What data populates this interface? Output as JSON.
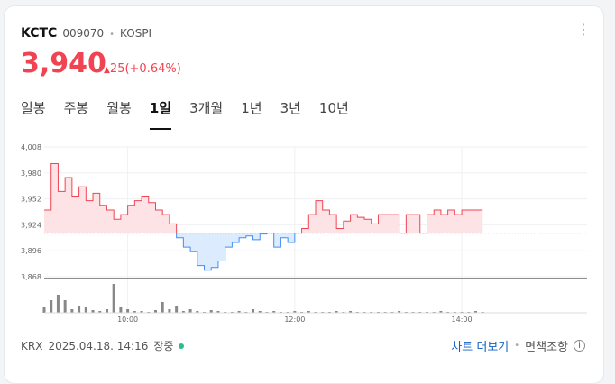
{
  "stock": {
    "name": "KCTC",
    "code": "009070",
    "market": "KOSPI",
    "price": "3,940",
    "change": "25(+0.64%)",
    "change_arrow": "▲"
  },
  "tabs": [
    "일봉",
    "주봉",
    "월봉",
    "1일",
    "3개월",
    "1년",
    "3년",
    "10년"
  ],
  "active_tab": "1일",
  "footer": {
    "exchange": "KRX",
    "datetime": "2025.04.18. 14:16",
    "status": "장중"
  },
  "links": {
    "chart_more": "차트 더보기",
    "disclaimer": "면책조항"
  },
  "colors": {
    "up": "#f04452",
    "down": "#3e8ef7"
  },
  "chart_data": {
    "type": "line",
    "y_ticks": [
      "4,008",
      "3,980",
      "3,952",
      "3,924",
      "3,896",
      "3,868"
    ],
    "ylim": [
      3868,
      4008
    ],
    "x_ticks": [
      "10:00",
      "12:00",
      "14:00"
    ],
    "x_range": [
      "09:00",
      "15:30"
    ],
    "base_price": 3915,
    "series": [
      {
        "x": [
          "09:00",
          "09:05",
          "09:10",
          "09:15",
          "09:20",
          "09:25",
          "09:30",
          "09:35",
          "09:40",
          "09:45",
          "09:50",
          "09:55",
          "10:00",
          "10:05",
          "10:10",
          "10:15",
          "10:20",
          "10:25",
          "10:30",
          "10:35",
          "10:40",
          "10:45",
          "10:50",
          "10:55",
          "11:00",
          "11:05",
          "11:10",
          "11:15",
          "11:20",
          "11:25",
          "11:30",
          "11:35",
          "11:40",
          "11:45",
          "11:50",
          "11:55",
          "12:00",
          "12:05",
          "12:10",
          "12:15",
          "12:20",
          "12:25",
          "12:30",
          "12:35",
          "12:40",
          "12:45",
          "12:50",
          "12:55",
          "13:00",
          "13:05",
          "13:10",
          "13:15",
          "13:20",
          "13:25",
          "13:30",
          "13:35",
          "13:40",
          "13:45",
          "13:50",
          "13:55",
          "14:00",
          "14:05",
          "14:10",
          "14:15"
        ],
        "y": [
          3940,
          3990,
          3960,
          3975,
          3955,
          3965,
          3950,
          3958,
          3945,
          3940,
          3930,
          3935,
          3945,
          3950,
          3955,
          3948,
          3940,
          3935,
          3925,
          3910,
          3900,
          3895,
          3880,
          3875,
          3878,
          3885,
          3900,
          3905,
          3910,
          3912,
          3908,
          3914,
          3915,
          3900,
          3910,
          3905,
          3915,
          3920,
          3935,
          3950,
          3940,
          3935,
          3920,
          3928,
          3935,
          3932,
          3930,
          3925,
          3935,
          3935,
          3935,
          3915,
          3935,
          3935,
          3915,
          3935,
          3940,
          3935,
          3940,
          3935,
          3940,
          3940,
          3940,
          3940
        ]
      }
    ],
    "volume": [
      6,
      14,
      20,
      14,
      4,
      8,
      6,
      3,
      2,
      4,
      32,
      6,
      4,
      2,
      2,
      1,
      3,
      12,
      4,
      8,
      2,
      4,
      2,
      1,
      3,
      2,
      1,
      1,
      2,
      1,
      4,
      2,
      1,
      2,
      1,
      1,
      2,
      1,
      2,
      1,
      1,
      1,
      2,
      1,
      2,
      1,
      1,
      1,
      1,
      1,
      1,
      2,
      1,
      1,
      1,
      1,
      1,
      2,
      1,
      1,
      1,
      1,
      2,
      1
    ]
  }
}
